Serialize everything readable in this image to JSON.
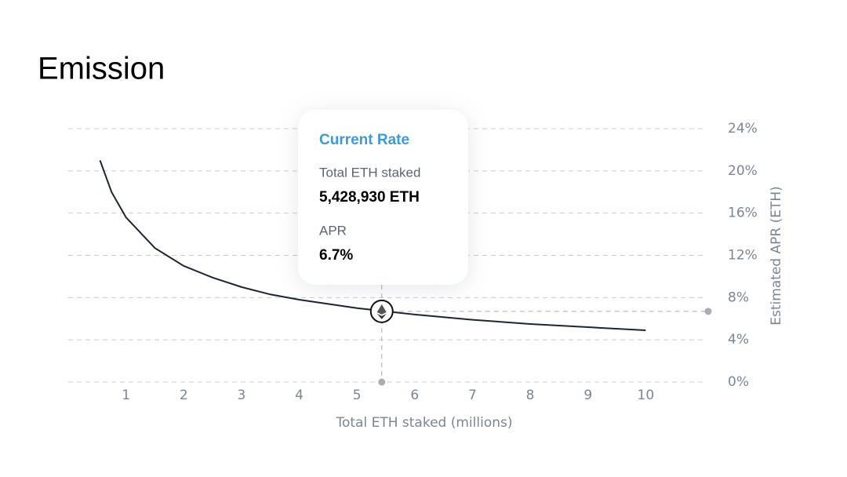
{
  "chart_data": {
    "type": "line",
    "title": "Emission",
    "x_label": "Total ETH staked (millions)",
    "y_label": "Estimated APR (ETH)",
    "x": [
      0.55,
      0.75,
      1,
      1.5,
      2,
      2.5,
      3,
      3.5,
      4,
      4.5,
      5,
      6,
      7,
      8,
      9,
      10
    ],
    "series": [
      {
        "color": "#1f2533",
        "values": [
          21.0,
          18.0,
          15.6,
          12.7,
          11.0,
          9.9,
          9.0,
          8.3,
          7.8,
          7.4,
          7.0,
          6.4,
          5.9,
          5.5,
          5.2,
          4.9
        ]
      }
    ],
    "xlim": [
      0,
      11
    ],
    "xticks": [
      1,
      2,
      3,
      4,
      5,
      6,
      7,
      8,
      9,
      10
    ],
    "ylim": [
      0,
      24
    ],
    "yticks": [
      {
        "value": 0,
        "label": "0%"
      },
      {
        "value": 4,
        "label": "4%"
      },
      {
        "value": 8,
        "label": "8%"
      },
      {
        "value": 12,
        "label": "12%"
      },
      {
        "value": 16,
        "label": "16%"
      },
      {
        "value": 20,
        "label": "20%"
      },
      {
        "value": 24,
        "label": "24%"
      }
    ],
    "grid": true,
    "current": {
      "title": "Current Rate",
      "x_name": "Total ETH staked",
      "x": 5.42893,
      "x_label": "5,428,930 ETH",
      "y_name": "APR",
      "y": 6.7,
      "y_label": "6.7%"
    }
  }
}
